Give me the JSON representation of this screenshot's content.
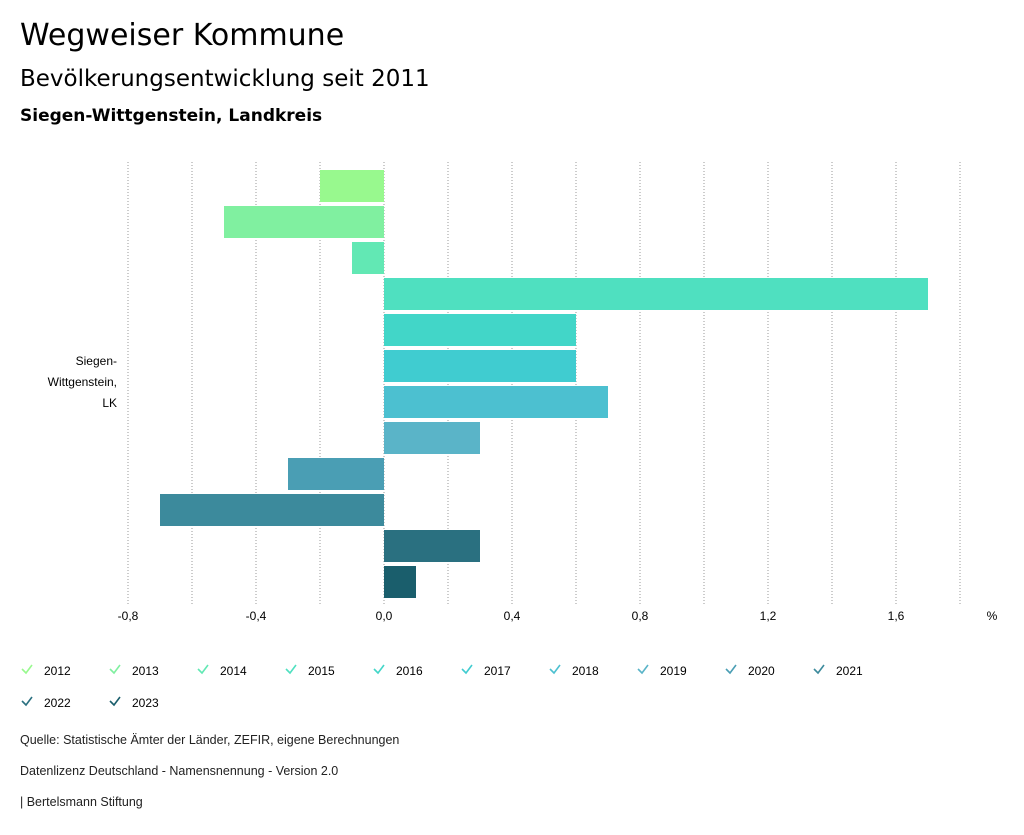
{
  "title": "Wegweiser Kommune",
  "subtitle": "Bevölkerungsentwicklung seit 2011",
  "region": "Siegen-Wittgenstein, Landkreis",
  "chart_data": {
    "type": "bar",
    "orientation": "horizontal",
    "category_label": [
      "Siegen-",
      "Wittgenstein,",
      "LK"
    ],
    "xlabel": "%",
    "xlim": [
      -0.8,
      1.8
    ],
    "xticks": [
      -0.8,
      -0.4,
      0.0,
      0.4,
      0.8,
      1.2,
      1.6
    ],
    "xtick_labels": [
      "-0,8",
      "-0,4",
      "0,0",
      "0,4",
      "0,8",
      "1,2",
      "1,6"
    ],
    "grid": true,
    "legend_position": "bottom",
    "series": [
      {
        "name": "2012",
        "value": -0.2,
        "color": "#98f98e"
      },
      {
        "name": "2013",
        "value": -0.5,
        "color": "#80f0a0"
      },
      {
        "name": "2014",
        "value": -0.1,
        "color": "#62e8b4"
      },
      {
        "name": "2015",
        "value": 1.7,
        "color": "#4fe0c0"
      },
      {
        "name": "2016",
        "value": 0.6,
        "color": "#42d6c8"
      },
      {
        "name": "2017",
        "value": 0.6,
        "color": "#40ccd0"
      },
      {
        "name": "2018",
        "value": 0.7,
        "color": "#4cc0d0"
      },
      {
        "name": "2019",
        "value": 0.3,
        "color": "#5ab4c8"
      },
      {
        "name": "2020",
        "value": -0.3,
        "color": "#4a9eb4"
      },
      {
        "name": "2021",
        "value": -0.7,
        "color": "#3c8a9c"
      },
      {
        "name": "2022",
        "value": 0.3,
        "color": "#2a7080"
      },
      {
        "name": "2023",
        "value": 0.1,
        "color": "#1a5e6c"
      }
    ]
  },
  "footer": {
    "source": "Quelle: Statistische Ämter der Länder, ZEFIR, eigene Berechnungen",
    "license": "Datenlizenz Deutschland - Namensnennung - Version 2.0",
    "brand": "| Bertelsmann Stiftung"
  }
}
